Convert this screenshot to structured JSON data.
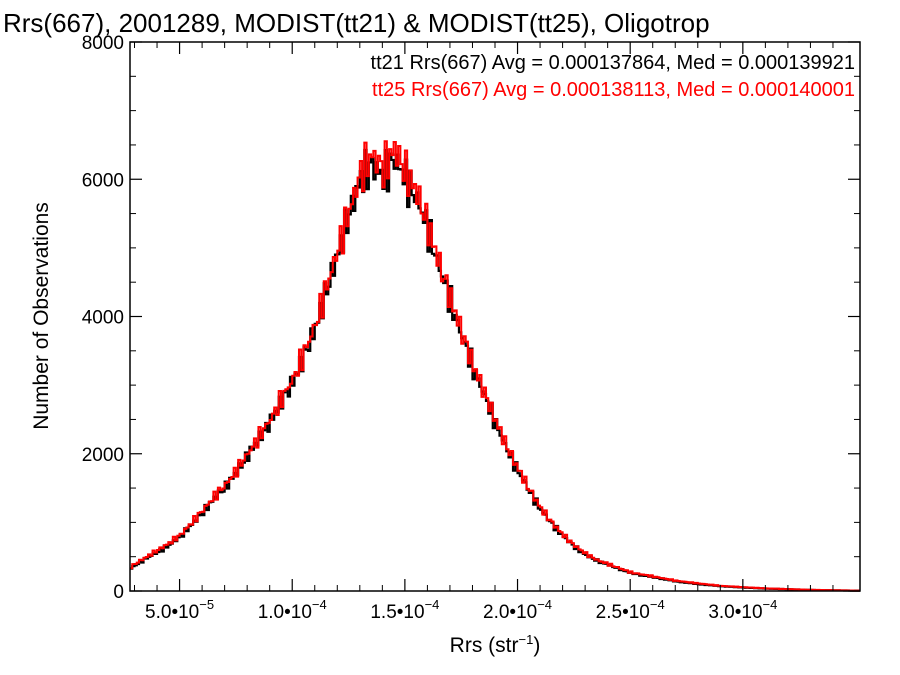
{
  "chart_data": {
    "type": "line",
    "title": "Rrs(667), 2001289, MODIST(tt21) & MODIST(tt25), Oligotrop",
    "xlabel": {
      "base": "Rrs (str",
      "exp": "−1",
      "close": ")"
    },
    "ylabel": "Number of Observations",
    "xlim": [
      2.8e-05,
      0.000352
    ],
    "ylim": [
      0,
      8000
    ],
    "grid": false,
    "legend_position": "top-right",
    "y_ticks": [
      {
        "value": 0,
        "label": "0"
      },
      {
        "value": 2000,
        "label": "2000"
      },
      {
        "value": 4000,
        "label": "4000"
      },
      {
        "value": 6000,
        "label": "6000"
      },
      {
        "value": 8000,
        "label": "8000"
      }
    ],
    "x_ticks": [
      {
        "value": 5e-05,
        "mantissa": "5.0•10",
        "exponent": "−5"
      },
      {
        "value": 0.0001,
        "mantissa": "1.0•10",
        "exponent": "−4"
      },
      {
        "value": 0.00015,
        "mantissa": "1.5•10",
        "exponent": "−4"
      },
      {
        "value": 0.0002,
        "mantissa": "2.0•10",
        "exponent": "−4"
      },
      {
        "value": 0.00025,
        "mantissa": "2.5•10",
        "exponent": "−4"
      },
      {
        "value": 0.0003,
        "mantissa": "3.0•10",
        "exponent": "−4"
      }
    ],
    "x": [
      2.8e-05,
      3e-05,
      3.5e-05,
      4e-05,
      4.5e-05,
      5e-05,
      5.5e-05,
      6e-05,
      6.5e-05,
      7e-05,
      7.5e-05,
      8e-05,
      8.5e-05,
      9e-05,
      9.5e-05,
      0.0001,
      0.000105,
      0.00011,
      0.000115,
      0.00012,
      0.000125,
      0.00013,
      0.000135,
      0.00014,
      0.000145,
      0.00015,
      0.000155,
      0.00016,
      0.000165,
      0.00017,
      0.000175,
      0.00018,
      0.000185,
      0.00019,
      0.000195,
      0.0002,
      0.000205,
      0.00021,
      0.000215,
      0.00022,
      0.000225,
      0.00023,
      0.000235,
      0.00024,
      0.000245,
      0.00025,
      0.00026,
      0.00027,
      0.00028,
      0.00029,
      0.0003,
      0.00031,
      0.00032,
      0.00033,
      0.00034,
      0.00035
    ],
    "series": [
      {
        "name": "tt21",
        "color": "#000000",
        "values": [
          330,
          380,
          480,
          570,
          670,
          800,
          970,
          1150,
          1350,
          1520,
          1740,
          1990,
          2230,
          2480,
          2780,
          3060,
          3440,
          3850,
          4400,
          4950,
          5500,
          6020,
          6200,
          6050,
          6300,
          6000,
          5700,
          5250,
          4700,
          4200,
          3700,
          3240,
          2840,
          2430,
          2050,
          1740,
          1440,
          1180,
          970,
          790,
          640,
          520,
          440,
          380,
          320,
          260,
          200,
          140,
          100,
          70,
          50,
          35,
          25,
          15,
          10,
          5
        ]
      },
      {
        "name": "tt25",
        "color": "#ff0000",
        "values": [
          350,
          400,
          500,
          600,
          700,
          820,
          1000,
          1180,
          1380,
          1550,
          1770,
          2010,
          2260,
          2510,
          2810,
          3100,
          3480,
          3900,
          4450,
          5000,
          5550,
          6100,
          6350,
          6150,
          6450,
          6100,
          5800,
          5300,
          4750,
          4250,
          3750,
          3280,
          2880,
          2470,
          2090,
          1770,
          1470,
          1200,
          990,
          810,
          660,
          540,
          450,
          390,
          330,
          270,
          210,
          150,
          110,
          75,
          55,
          38,
          27,
          17,
          11,
          6
        ]
      }
    ],
    "legend": [
      {
        "text": "tt21 Rrs(667) Avg = 0.000137864, Med = 0.000139921",
        "color": "#000000"
      },
      {
        "text": "tt25 Rrs(667) Avg = 0.000138113, Med = 0.000140001",
        "color": "#ff0000"
      }
    ]
  }
}
